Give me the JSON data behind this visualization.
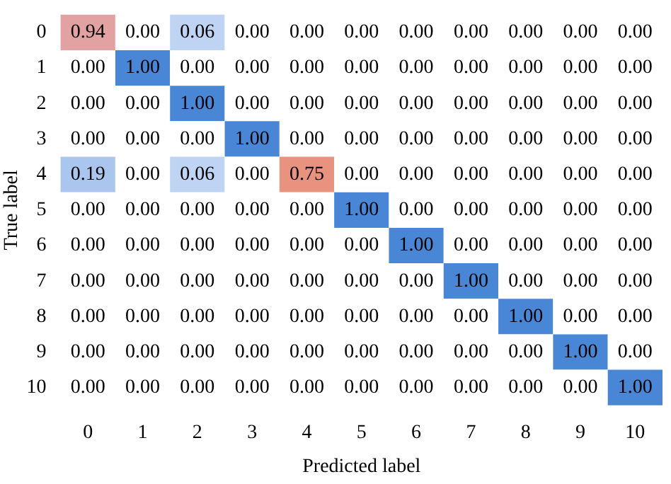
{
  "chart_data": {
    "type": "heatmap",
    "xlabel": "Predicted label",
    "ylabel": "True label",
    "categories": [
      "0",
      "1",
      "2",
      "3",
      "4",
      "5",
      "6",
      "7",
      "8",
      "9",
      "10"
    ],
    "y_categories": [
      "0",
      "1",
      "2",
      "3",
      "4",
      "5",
      "6",
      "7",
      "8",
      "9",
      "10"
    ],
    "cells": [
      [
        0.94,
        0,
        0.06,
        0,
        0,
        0,
        0,
        0,
        0,
        0,
        0
      ],
      [
        0,
        1,
        0,
        0,
        0,
        0,
        0,
        0,
        0,
        0,
        0
      ],
      [
        0,
        0,
        1,
        0,
        0,
        0,
        0,
        0,
        0,
        0,
        0
      ],
      [
        0,
        0,
        0,
        1,
        0,
        0,
        0,
        0,
        0,
        0,
        0
      ],
      [
        0.19,
        0,
        0.06,
        0,
        0.75,
        0,
        0,
        0,
        0,
        0,
        0
      ],
      [
        0,
        0,
        0,
        0,
        0,
        1,
        0,
        0,
        0,
        0,
        0
      ],
      [
        0,
        0,
        0,
        0,
        0,
        0,
        1,
        0,
        0,
        0,
        0
      ],
      [
        0,
        0,
        0,
        0,
        0,
        0,
        0,
        1,
        0,
        0,
        0
      ],
      [
        0,
        0,
        0,
        0,
        0,
        0,
        0,
        0,
        1,
        0,
        0
      ],
      [
        0,
        0,
        0,
        0,
        0,
        0,
        0,
        0,
        0,
        1,
        0
      ],
      [
        0,
        0,
        0,
        0,
        0,
        0,
        0,
        0,
        0,
        0,
        1
      ]
    ],
    "cell_labels": [
      [
        "0.94",
        "0.00",
        "0.06",
        "0.00",
        "0.00",
        "0.00",
        "0.00",
        "0.00",
        "0.00",
        "0.00",
        "0.00"
      ],
      [
        "0.00",
        "1.00",
        "0.00",
        "0.00",
        "0.00",
        "0.00",
        "0.00",
        "0.00",
        "0.00",
        "0.00",
        "0.00"
      ],
      [
        "0.00",
        "0.00",
        "1.00",
        "0.00",
        "0.00",
        "0.00",
        "0.00",
        "0.00",
        "0.00",
        "0.00",
        "0.00"
      ],
      [
        "0.00",
        "0.00",
        "0.00",
        "1.00",
        "0.00",
        "0.00",
        "0.00",
        "0.00",
        "0.00",
        "0.00",
        "0.00"
      ],
      [
        "0.19",
        "0.00",
        "0.06",
        "0.00",
        "0.75",
        "0.00",
        "0.00",
        "0.00",
        "0.00",
        "0.00",
        "0.00"
      ],
      [
        "0.00",
        "0.00",
        "0.00",
        "0.00",
        "0.00",
        "1.00",
        "0.00",
        "0.00",
        "0.00",
        "0.00",
        "0.00"
      ],
      [
        "0.00",
        "0.00",
        "0.00",
        "0.00",
        "0.00",
        "0.00",
        "1.00",
        "0.00",
        "0.00",
        "0.00",
        "0.00"
      ],
      [
        "0.00",
        "0.00",
        "0.00",
        "0.00",
        "0.00",
        "0.00",
        "0.00",
        "1.00",
        "0.00",
        "0.00",
        "0.00"
      ],
      [
        "0.00",
        "0.00",
        "0.00",
        "0.00",
        "0.00",
        "0.00",
        "0.00",
        "0.00",
        "1.00",
        "0.00",
        "0.00"
      ],
      [
        "0.00",
        "0.00",
        "0.00",
        "0.00",
        "0.00",
        "0.00",
        "0.00",
        "0.00",
        "0.00",
        "1.00",
        "0.00"
      ],
      [
        "0.00",
        "0.00",
        "0.00",
        "0.00",
        "0.00",
        "0.00",
        "0.00",
        "0.00",
        "0.00",
        "0.00",
        "1.00"
      ]
    ]
  }
}
